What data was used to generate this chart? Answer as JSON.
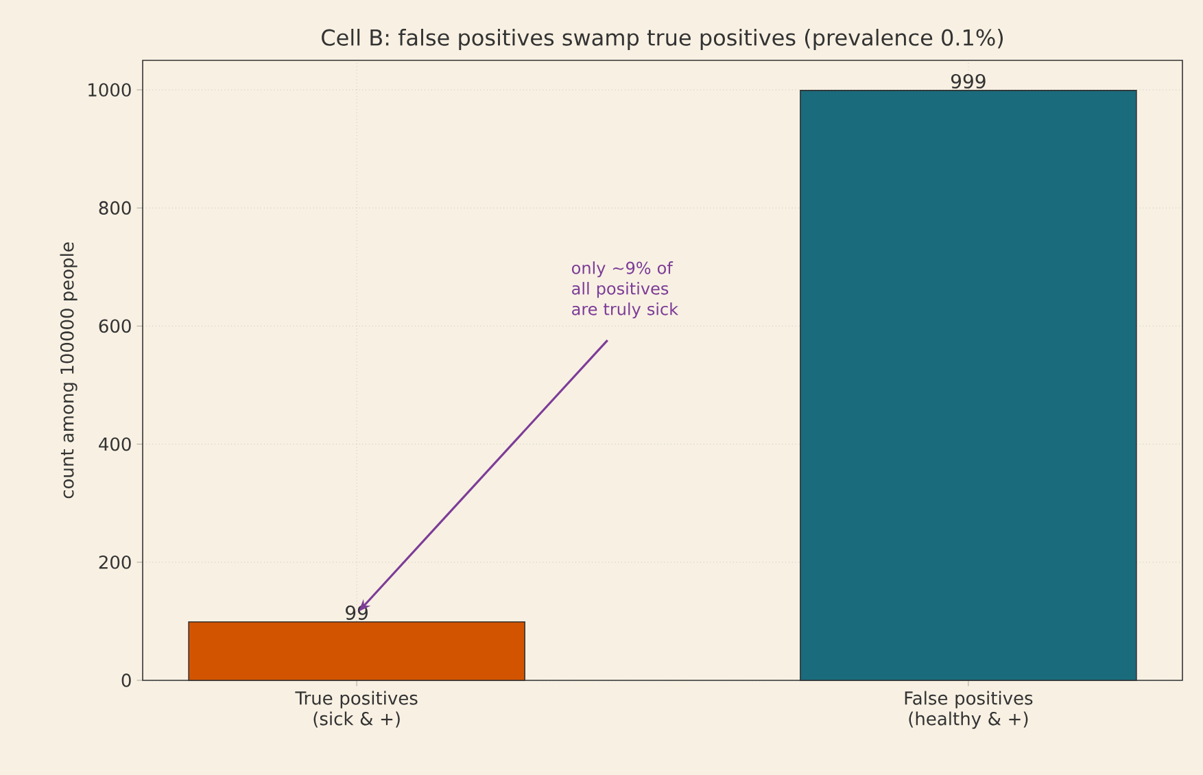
{
  "chart_data": {
    "type": "bar",
    "title": "Cell B: false positives swamp true positives (prevalence 0.1%)",
    "ylabel": "count among 100000 people",
    "categories": [
      "True positives (sick & +)",
      "False positives (healthy & +)"
    ],
    "values": [
      99,
      999
    ],
    "colors": [
      "#d35400",
      "#1a6b7c"
    ],
    "ylim": [
      0,
      1050
    ],
    "yticks": [
      0,
      200,
      400,
      600,
      800,
      1000
    ],
    "grid": true,
    "data_labels": true,
    "annotations": [
      "only ~9% of all positives are truly sick"
    ]
  }
}
